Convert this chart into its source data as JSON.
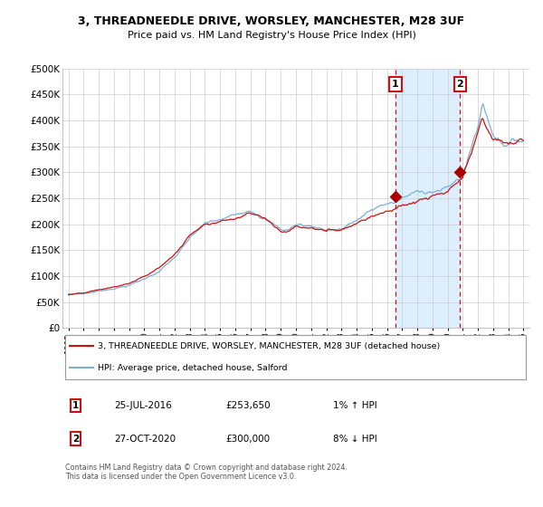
{
  "title": "3, THREADNEEDLE DRIVE, WORSLEY, MANCHESTER, M28 3UF",
  "subtitle": "Price paid vs. HM Land Registry's House Price Index (HPI)",
  "ylim": [
    0,
    500000
  ],
  "yticks": [
    0,
    50000,
    100000,
    150000,
    200000,
    250000,
    300000,
    350000,
    400000,
    450000,
    500000
  ],
  "ytick_labels": [
    "£0",
    "£50K",
    "£100K",
    "£150K",
    "£200K",
    "£250K",
    "£300K",
    "£350K",
    "£400K",
    "£450K",
    "£500K"
  ],
  "xlim_start": 1994.6,
  "xlim_end": 2025.4,
  "xticks": [
    1995,
    1996,
    1997,
    1998,
    1999,
    2000,
    2001,
    2002,
    2003,
    2004,
    2005,
    2006,
    2007,
    2008,
    2009,
    2010,
    2011,
    2012,
    2013,
    2014,
    2015,
    2016,
    2017,
    2018,
    2019,
    2020,
    2021,
    2022,
    2023,
    2024,
    2025
  ],
  "hpi_color": "#7ab0d4",
  "price_color": "#cc1111",
  "marker_color": "#aa0000",
  "vline_color": "#cc1111",
  "shade_color": "#ddeeff",
  "annotation_box_color": "#cc1111",
  "bg_color": "#ffffff",
  "grid_color": "#cccccc",
  "transaction1_year": 2016.558,
  "transaction1_price": 253650,
  "transaction2_year": 2020.826,
  "transaction2_price": 300000,
  "legend_label1": "3, THREADNEEDLE DRIVE, WORSLEY, MANCHESTER, M28 3UF (detached house)",
  "legend_label2": "HPI: Average price, detached house, Salford",
  "table_row1": [
    "1",
    "25-JUL-2016",
    "£253,650",
    "1% ↑ HPI"
  ],
  "table_row2": [
    "2",
    "27-OCT-2020",
    "£300,000",
    "8% ↓ HPI"
  ],
  "footer": "Contains HM Land Registry data © Crown copyright and database right 2024.\nThis data is licensed under the Open Government Licence v3.0."
}
